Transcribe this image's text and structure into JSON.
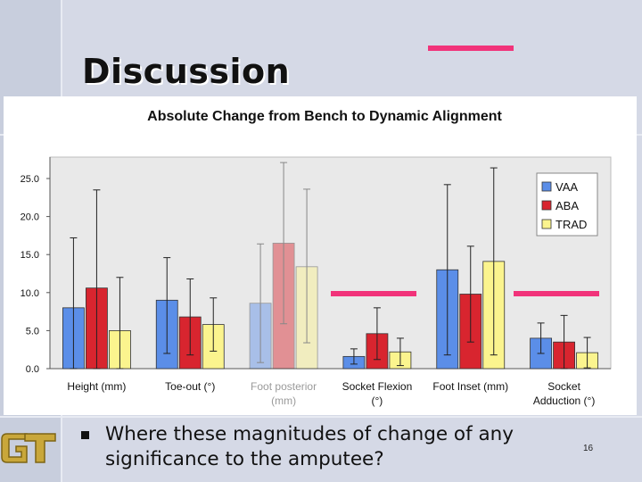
{
  "slide": {
    "title": "Discussion",
    "bullet_text": "Where these magnitudes of change of any significance to the amputee?",
    "page_number": "16"
  },
  "colors": {
    "accent": "#f1337a",
    "vaa": "#5b8ee8",
    "aba": "#d8252f",
    "trad": "#fbf48e",
    "plot_bg": "#e9e9e9"
  },
  "chart_data": {
    "type": "bar",
    "title": "Absolute Change from Bench to Dynamic Alignment",
    "xlabel": "",
    "ylabel": "",
    "ylim": [
      0,
      27.5
    ],
    "yticks": [
      "0.0",
      "5.0",
      "10.0",
      "15.0",
      "20.0",
      "25.0"
    ],
    "categories": [
      [
        "Height (mm)"
      ],
      [
        "Toe-out (°)"
      ],
      [
        "Foot posterior",
        "(mm)"
      ],
      [
        "Socket Flexion",
        "(°)"
      ],
      [
        "Foot Inset (mm)"
      ],
      [
        "Socket",
        "Adduction (°)"
      ]
    ],
    "faded_category": 2,
    "legend_position": "top-right",
    "series": [
      {
        "name": "VAA",
        "values": [
          8.0,
          9.0,
          8.6,
          1.6,
          13.0,
          4.0
        ],
        "err_low": [
          17.0,
          7.0,
          7.8,
          1.0,
          11.2,
          2.0
        ],
        "err_high": [
          9.2,
          5.6,
          7.8,
          1.0,
          11.2,
          2.0
        ]
      },
      {
        "name": "ABA",
        "values": [
          10.6,
          6.8,
          16.5,
          4.6,
          9.8,
          3.5
        ],
        "err_low": [
          13.0,
          5.0,
          10.6,
          3.4,
          6.3,
          3.5
        ],
        "err_high": [
          12.9,
          5.0,
          10.6,
          3.4,
          6.3,
          3.5
        ]
      },
      {
        "name": "TRAD",
        "values": [
          5.0,
          5.8,
          13.4,
          2.2,
          14.1,
          2.1
        ],
        "err_low": [
          7.0,
          3.5,
          10.0,
          1.8,
          12.3,
          2.0
        ],
        "err_high": [
          7.0,
          3.5,
          10.2,
          1.8,
          12.3,
          2.0
        ]
      }
    ]
  }
}
